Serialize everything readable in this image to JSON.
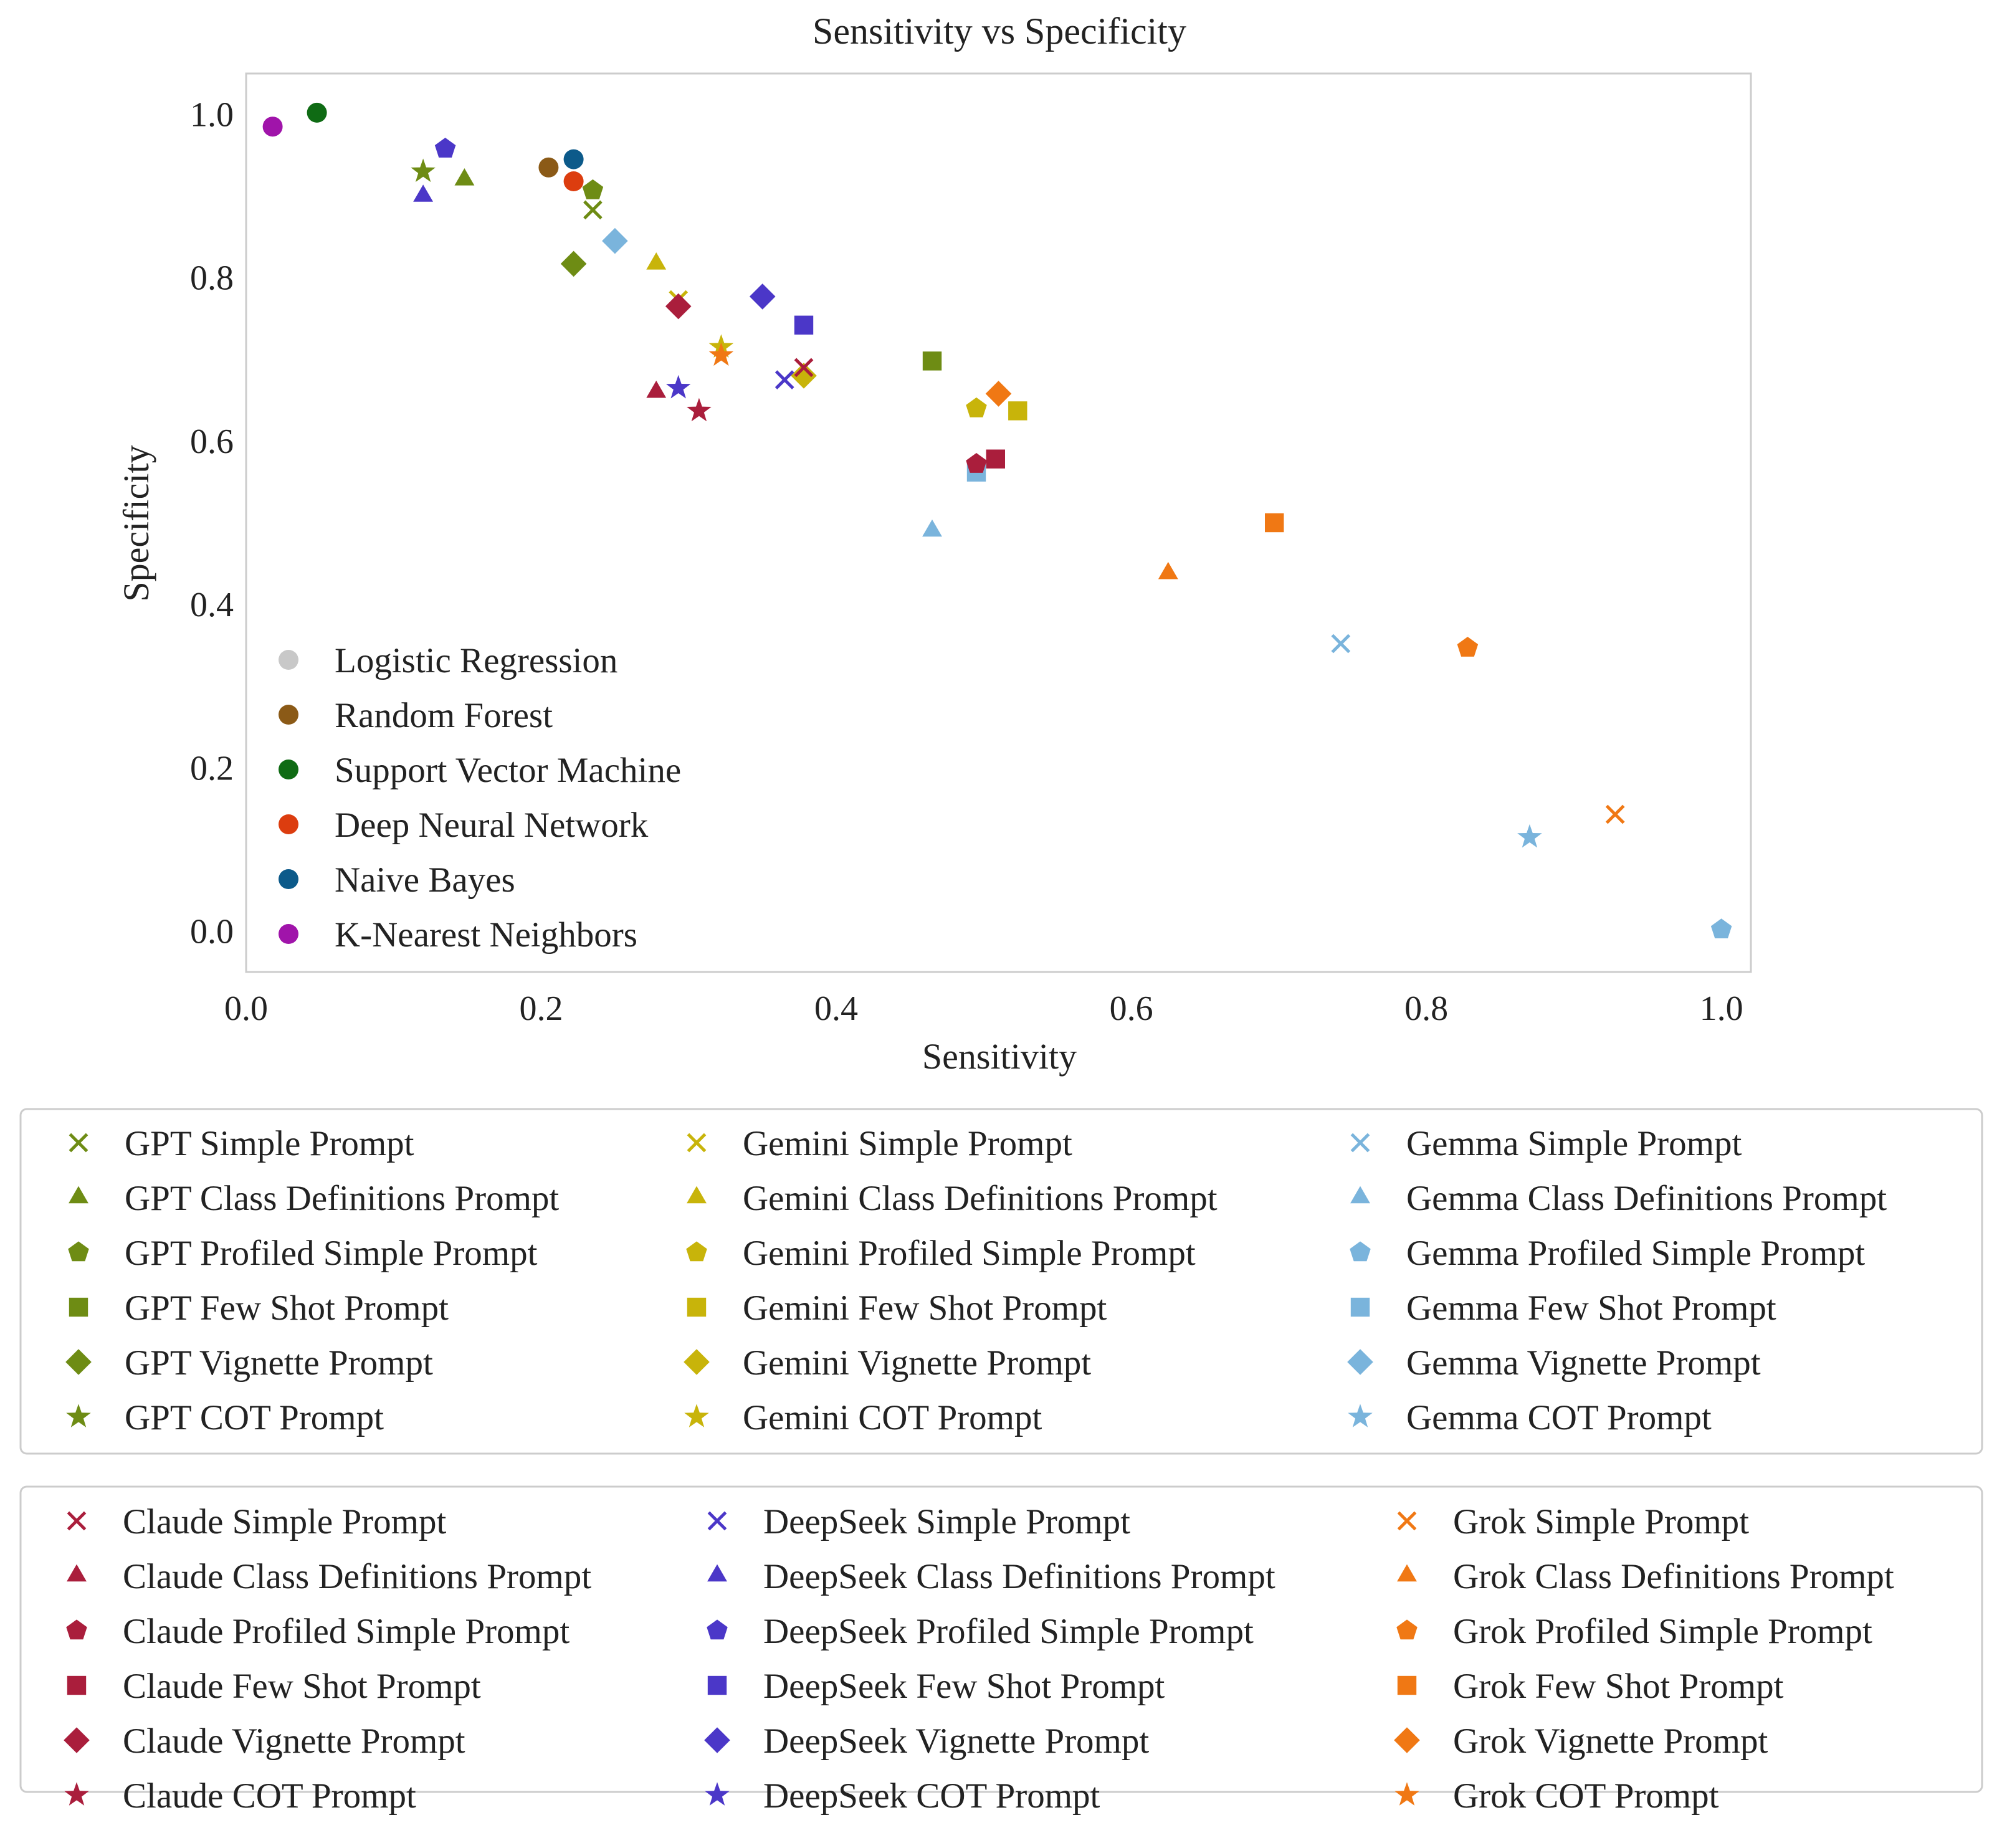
{
  "chart_data": {
    "type": "scatter",
    "title": "Sensitivity vs Specificity",
    "xlabel": "Sensitivity",
    "ylabel": "Specificity",
    "xlim": [
      0.0,
      1.02
    ],
    "ylim": [
      -0.05,
      1.05
    ],
    "x_ticks": [
      "0.0",
      "0.2",
      "0.4",
      "0.6",
      "0.8",
      "1.0"
    ],
    "y_ticks": [
      "0.0",
      "0.2",
      "0.4",
      "0.6",
      "0.8",
      "1.0"
    ],
    "grid": false,
    "legend_placement": "lower-left",
    "baseline_models": [
      {
        "name": "Logistic Regression",
        "color": "#c8c8c8",
        "marker": "circle",
        "x": null,
        "y": null
      },
      {
        "name": "Random Forest",
        "color": "#8b5a17",
        "marker": "circle",
        "x": 0.205,
        "y": 0.935
      },
      {
        "name": "Support Vector Machine",
        "color": "#0f6b14",
        "marker": "circle",
        "x": 0.048,
        "y": 1.002
      },
      {
        "name": "Deep Neural Network",
        "color": "#dc3d0f",
        "marker": "circle",
        "x": 0.222,
        "y": 0.918
      },
      {
        "name": "Naive Bayes",
        "color": "#0c5a8a",
        "marker": "circle",
        "x": 0.222,
        "y": 0.945
      },
      {
        "name": "K-Nearest Neighbors",
        "color": "#a014aa",
        "marker": "circle",
        "x": 0.018,
        "y": 0.985
      }
    ],
    "llm_families": [
      {
        "family": "GPT",
        "color": "#6e8c14",
        "points": [
          {
            "prompt": "Simple Prompt",
            "label": "GPT Simple Prompt",
            "marker": "x",
            "x": 0.235,
            "y": 0.883
          },
          {
            "prompt": "Class Definitions Prompt",
            "label": "GPT Class Definitions Prompt",
            "marker": "triangle",
            "x": 0.148,
            "y": 0.92
          },
          {
            "prompt": "Profiled Simple Prompt",
            "label": "GPT Profiled Simple Prompt",
            "marker": "pentagon",
            "x": 0.235,
            "y": 0.907
          },
          {
            "prompt": "Few Shot Prompt",
            "label": "GPT Few Shot Prompt",
            "marker": "square",
            "x": 0.465,
            "y": 0.698
          },
          {
            "prompt": "Vignette Prompt",
            "label": "GPT Vignette Prompt",
            "marker": "diamond",
            "x": 0.222,
            "y": 0.817
          },
          {
            "prompt": "COT Prompt",
            "label": "GPT COT Prompt",
            "marker": "star",
            "x": 0.12,
            "y": 0.93
          }
        ]
      },
      {
        "family": "Gemini",
        "color": "#c8b40a",
        "points": [
          {
            "prompt": "Simple Prompt",
            "label": "Gemini Simple Prompt",
            "marker": "x",
            "x": 0.293,
            "y": 0.773
          },
          {
            "prompt": "Class Definitions Prompt",
            "label": "Gemini Class Definitions Prompt",
            "marker": "triangle",
            "x": 0.278,
            "y": 0.817
          },
          {
            "prompt": "Profiled Simple Prompt",
            "label": "Gemini Profiled Simple Prompt",
            "marker": "pentagon",
            "x": 0.495,
            "y": 0.64
          },
          {
            "prompt": "Few Shot Prompt",
            "label": "Gemini Few Shot Prompt",
            "marker": "square",
            "x": 0.523,
            "y": 0.637
          },
          {
            "prompt": "Vignette Prompt",
            "label": "Gemini Vignette Prompt",
            "marker": "diamond",
            "x": 0.378,
            "y": 0.68
          },
          {
            "prompt": "COT Prompt",
            "label": "Gemini COT Prompt",
            "marker": "star",
            "x": 0.322,
            "y": 0.715
          }
        ]
      },
      {
        "family": "Gemma",
        "color": "#7ab4dc",
        "points": [
          {
            "prompt": "Simple Prompt",
            "label": "Gemma Simple Prompt",
            "marker": "x",
            "x": 0.742,
            "y": 0.352
          },
          {
            "prompt": "Class Definitions Prompt",
            "label": "Gemma Class Definitions Prompt",
            "marker": "triangle",
            "x": 0.465,
            "y": 0.49
          },
          {
            "prompt": "Profiled Simple Prompt",
            "label": "Gemma Profiled Simple Prompt",
            "marker": "pentagon",
            "x": 1.0,
            "y": 0.002
          },
          {
            "prompt": "Few Shot Prompt",
            "label": "Gemma Few Shot Prompt",
            "marker": "square",
            "x": 0.495,
            "y": 0.562
          },
          {
            "prompt": "Vignette Prompt",
            "label": "Gemma Vignette Prompt",
            "marker": "diamond",
            "x": 0.25,
            "y": 0.845
          },
          {
            "prompt": "COT Prompt",
            "label": "Gemma COT Prompt",
            "marker": "star",
            "x": 0.87,
            "y": 0.115
          }
        ]
      },
      {
        "family": "Claude",
        "color": "#aa1e3c",
        "points": [
          {
            "prompt": "Simple Prompt",
            "label": "Claude Simple Prompt",
            "marker": "x",
            "x": 0.378,
            "y": 0.69
          },
          {
            "prompt": "Class Definitions Prompt",
            "label": "Claude Class Definitions Prompt",
            "marker": "triangle",
            "x": 0.278,
            "y": 0.66
          },
          {
            "prompt": "Profiled Simple Prompt",
            "label": "Claude Profiled Simple Prompt",
            "marker": "pentagon",
            "x": 0.495,
            "y": 0.572
          },
          {
            "prompt": "Few Shot Prompt",
            "label": "Claude Few Shot Prompt",
            "marker": "square",
            "x": 0.508,
            "y": 0.578
          },
          {
            "prompt": "Vignette Prompt",
            "label": "Claude Vignette Prompt",
            "marker": "diamond",
            "x": 0.293,
            "y": 0.765
          },
          {
            "prompt": "COT Prompt",
            "label": "Claude COT Prompt",
            "marker": "star",
            "x": 0.307,
            "y": 0.637
          }
        ]
      },
      {
        "family": "DeepSeek",
        "color": "#4b37c8",
        "points": [
          {
            "prompt": "Simple Prompt",
            "label": "DeepSeek Simple Prompt",
            "marker": "x",
            "x": 0.365,
            "y": 0.675
          },
          {
            "prompt": "Class Definitions Prompt",
            "label": "DeepSeek Class Definitions Prompt",
            "marker": "triangle",
            "x": 0.12,
            "y": 0.9
          },
          {
            "prompt": "Profiled Simple Prompt",
            "label": "DeepSeek Profiled Simple Prompt",
            "marker": "pentagon",
            "x": 0.135,
            "y": 0.958
          },
          {
            "prompt": "Few Shot Prompt",
            "label": "DeepSeek Few Shot Prompt",
            "marker": "square",
            "x": 0.378,
            "y": 0.742
          },
          {
            "prompt": "Vignette Prompt",
            "label": "DeepSeek Vignette Prompt",
            "marker": "diamond",
            "x": 0.35,
            "y": 0.777
          },
          {
            "prompt": "COT Prompt",
            "label": "DeepSeek COT Prompt",
            "marker": "star",
            "x": 0.293,
            "y": 0.665
          }
        ]
      },
      {
        "family": "Grok",
        "color": "#f07814",
        "points": [
          {
            "prompt": "Simple Prompt",
            "label": "Grok Simple Prompt",
            "marker": "x",
            "x": 0.928,
            "y": 0.143
          },
          {
            "prompt": "Class Definitions Prompt",
            "label": "Grok Class Definitions Prompt",
            "marker": "triangle",
            "x": 0.625,
            "y": 0.438
          },
          {
            "prompt": "Profiled Simple Prompt",
            "label": "Grok Profiled Simple Prompt",
            "marker": "pentagon",
            "x": 0.828,
            "y": 0.347
          },
          {
            "prompt": "Few Shot Prompt",
            "label": "Grok Few Shot Prompt",
            "marker": "square",
            "x": 0.697,
            "y": 0.5
          },
          {
            "prompt": "Vignette Prompt",
            "label": "Grok Vignette Prompt",
            "marker": "diamond",
            "x": 0.51,
            "y": 0.658
          },
          {
            "prompt": "COT Prompt",
            "label": "Grok COT Prompt",
            "marker": "star",
            "x": 0.322,
            "y": 0.705
          }
        ]
      }
    ]
  }
}
